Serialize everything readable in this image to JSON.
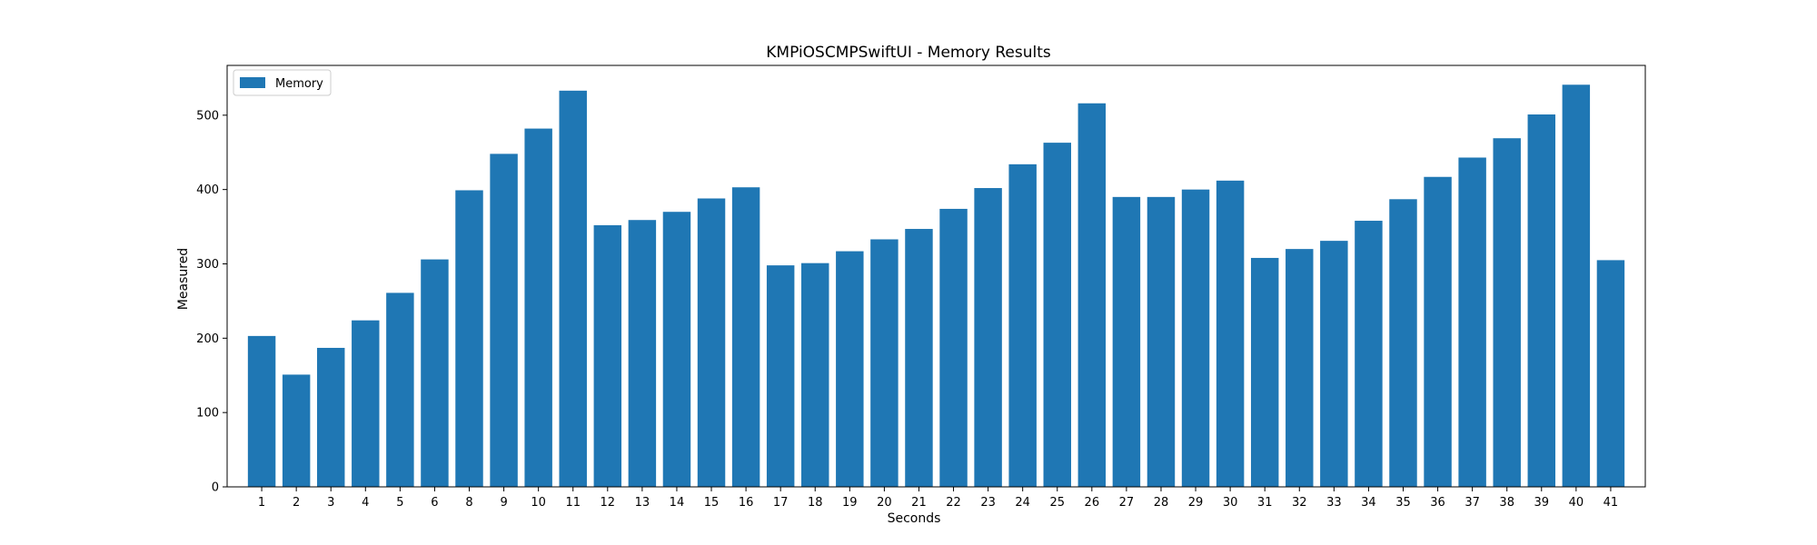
{
  "chart_data": {
    "type": "bar",
    "title": "KMPiOSCMPSwiftUI - Memory Results",
    "xlabel": "Seconds",
    "ylabel": "Measured",
    "categories": [
      "1",
      "2",
      "3",
      "4",
      "5",
      "6",
      "8",
      "9",
      "10",
      "11",
      "12",
      "13",
      "14",
      "15",
      "16",
      "17",
      "18",
      "19",
      "20",
      "21",
      "22",
      "23",
      "24",
      "25",
      "26",
      "27",
      "28",
      "29",
      "30",
      "31",
      "32",
      "33",
      "34",
      "35",
      "36",
      "37",
      "38",
      "39",
      "40",
      "41"
    ],
    "series": [
      {
        "name": "Memory",
        "color": "#1f77b4",
        "values": [
          203,
          151,
          187,
          224,
          261,
          306,
          399,
          448,
          482,
          533,
          352,
          359,
          370,
          388,
          403,
          298,
          301,
          317,
          333,
          347,
          374,
          402,
          434,
          463,
          516,
          390,
          390,
          400,
          412,
          308,
          320,
          331,
          358,
          387,
          417,
          443,
          469,
          501,
          541,
          305
        ]
      }
    ],
    "ylim": [
      0,
      567
    ],
    "yticks": [
      0,
      100,
      200,
      300,
      400,
      500
    ],
    "legend_position": "top-left",
    "grid": false
  }
}
